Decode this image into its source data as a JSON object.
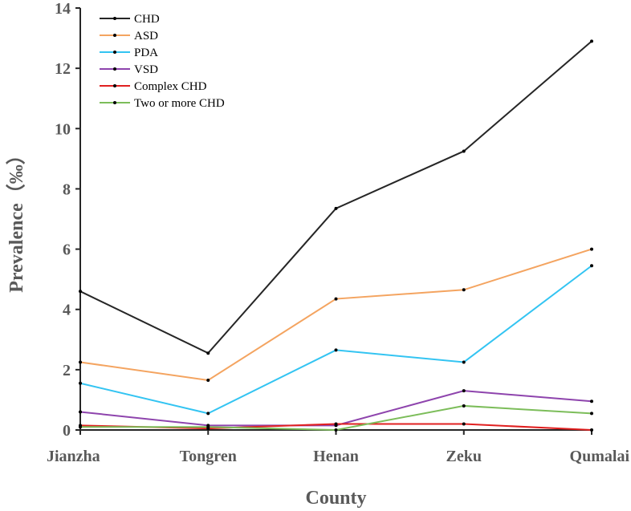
{
  "chart_data": {
    "type": "line",
    "xlabel": "County",
    "ylabel": "Prevalence（‰）",
    "categories": [
      "Jianzha",
      "Tongren",
      "Henan",
      "Zeku",
      "Qumalai"
    ],
    "ylim": [
      0,
      14
    ],
    "yticks": [
      "0",
      "2",
      "4",
      "6",
      "8",
      "10",
      "12",
      "14"
    ],
    "grid": false,
    "legend_position": "top-left",
    "series": [
      {
        "name": "CHD",
        "color": "#262626",
        "values": [
          4.6,
          2.55,
          7.35,
          9.25,
          12.9
        ]
      },
      {
        "name": "ASD",
        "color": "#f4a460",
        "values": [
          2.25,
          1.65,
          4.35,
          4.65,
          6.0
        ]
      },
      {
        "name": "PDA",
        "color": "#33c4f2",
        "values": [
          1.55,
          0.55,
          2.65,
          2.25,
          5.45
        ]
      },
      {
        "name": "VSD",
        "color": "#8e44ad",
        "values": [
          0.6,
          0.15,
          0.15,
          1.3,
          0.95
        ]
      },
      {
        "name": "Complex CHD",
        "color": "#e02020",
        "values": [
          0.15,
          0.05,
          0.2,
          0.2,
          0.0
        ]
      },
      {
        "name": "Two or more CHD",
        "color": "#7cbd5a",
        "values": [
          0.1,
          0.1,
          0.0,
          0.8,
          0.55
        ]
      }
    ]
  }
}
